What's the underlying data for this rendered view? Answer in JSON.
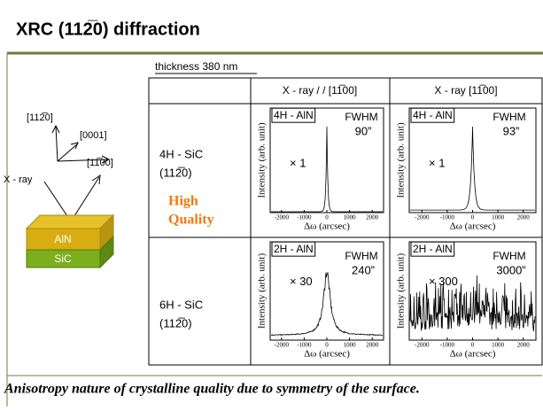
{
  "header": {
    "title": "XRC (112̅0) diffraction"
  },
  "diagram": {
    "axis_up": "[112̅0]",
    "axis_diag": "[0001]",
    "axis_right": "[11̅00]",
    "beam": "X - ray",
    "top_layer": "AlN",
    "bottom_layer": "SiC"
  },
  "table": {
    "caption": "thickness 380 nm",
    "columns": [
      "X - ray / / [11̅00]",
      "X - ray    [11̅00]"
    ],
    "rows": [
      {
        "sample": "4H - SiC",
        "plane": "(112̅0)",
        "note": [
          "High",
          "Quality"
        ]
      },
      {
        "sample": "6H - SiC",
        "plane": "(112̅0)"
      }
    ],
    "panels": [
      {
        "label": "4H - AlN",
        "fwhm": "FWHM",
        "value": "90”",
        "scale": "× 1",
        "y_label": "Intensity (arb. unit)",
        "x_label": "Δω (arcsec)",
        "x_ticks": [
          "-2000",
          "-1000",
          "0",
          "1000",
          "2000"
        ]
      },
      {
        "label": "4H - AlN",
        "fwhm": "FWHM",
        "value": "93”",
        "scale": "× 1",
        "y_label": "Intensity (arb. unit)",
        "x_label": "Δω (arcsec)",
        "x_ticks": [
          "-2000",
          "-1000",
          "0",
          "1000",
          "2000"
        ]
      },
      {
        "label": "2H - AlN",
        "fwhm": "FWHM",
        "value": "240”",
        "scale": "× 30",
        "y_label": "Intensity (arb. unit)",
        "x_label": "Δω (arcsec)",
        "x_ticks": [
          "-2000",
          "-1000",
          "0",
          "1000",
          "2000"
        ]
      },
      {
        "label": "2H - AlN",
        "fwhm": "FWHM",
        "value": "3000”",
        "scale": "× 300",
        "y_label": "Intensity (arb. unit)",
        "x_label": "Δω (arcsec)",
        "x_ticks": [
          "-2000",
          "-1000",
          "0",
          "1000",
          "2000"
        ]
      }
    ]
  },
  "footer": {
    "text": "Anisotropy nature of crystalline quality due to symmetry of the surface."
  }
}
